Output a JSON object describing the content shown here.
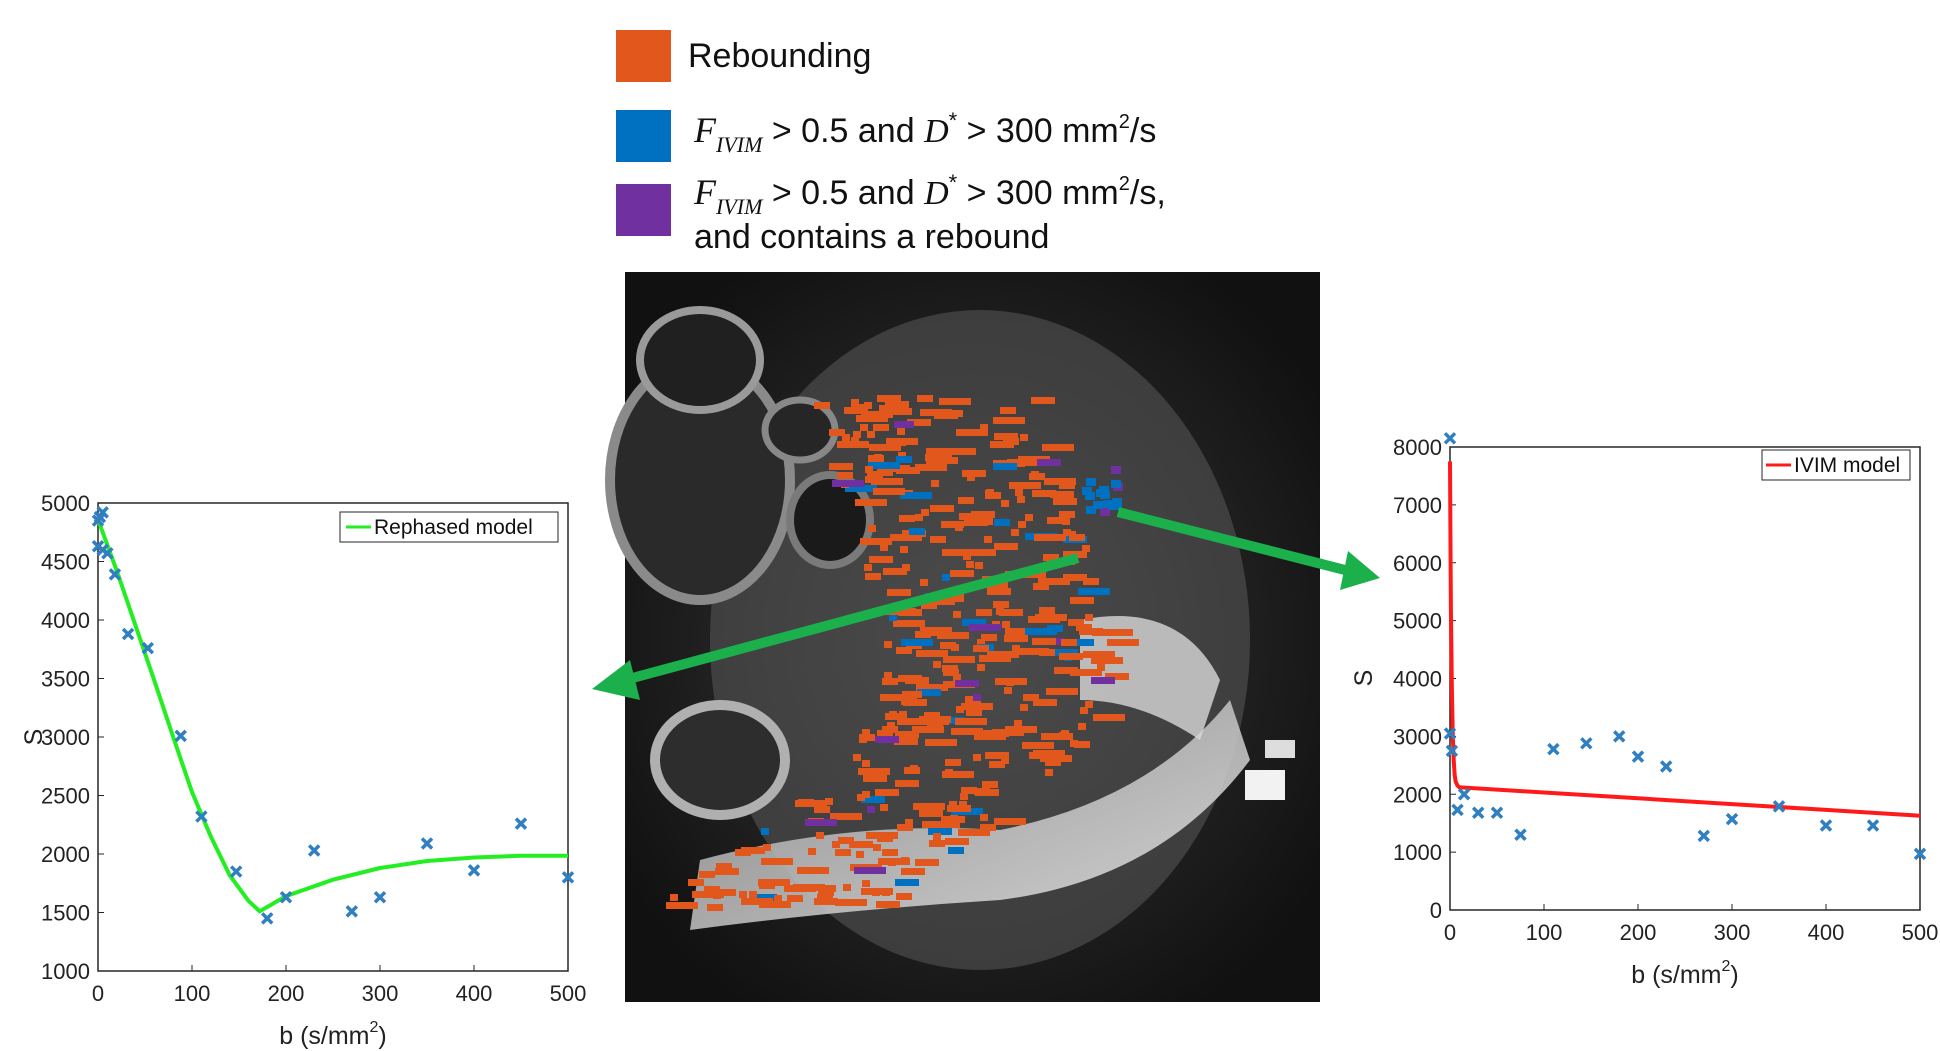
{
  "colors": {
    "rebounding": "#e2581c",
    "ivim_high": "#0070c0",
    "both": "#7030a0",
    "arrow": "#1cb04c",
    "rephased_line": "#22ee22",
    "ivim_line": "#ff1a1a",
    "markers": "#2f7fc1"
  },
  "legend": {
    "rebounding": "Rebounding",
    "f_symbol": "F",
    "f_subscript": "IVIM",
    "d_symbol": "D",
    "d_superscript": "*",
    "cond_part1": " > 0.5 and ",
    "cond_part2_a": " > 300 mm",
    "cond_part2_b": "2",
    "cond_part2_c": "/s",
    "cond_part2_c_comma": "/s,",
    "line2_text": "and contains a rebound"
  },
  "chart_data": [
    {
      "type": "line",
      "title": "",
      "legend": "Rephased model",
      "xlabel": "b (s/mm",
      "xlabel_sup": "2",
      "xlabel_end": ")",
      "ylabel": "S",
      "xlim": [
        0,
        500
      ],
      "ylim": [
        1000,
        5000
      ],
      "xticks": [
        0,
        100,
        200,
        300,
        400,
        500
      ],
      "yticks": [
        1000,
        1500,
        2000,
        2500,
        3000,
        3500,
        4000,
        4500,
        5000
      ],
      "scatter": {
        "x": [
          0,
          2,
          5,
          0,
          5,
          10,
          18,
          32,
          53,
          88,
          110,
          147,
          180,
          200,
          230,
          270,
          300,
          350,
          400,
          450,
          500
        ],
        "y": [
          4850,
          4880,
          4920,
          4630,
          4600,
          4570,
          4390,
          3880,
          3760,
          3010,
          2320,
          1850,
          1450,
          1630,
          2030,
          1510,
          1630,
          2090,
          1860,
          2260,
          1800
        ]
      },
      "model": {
        "x": [
          0,
          20,
          40,
          60,
          80,
          100,
          120,
          140,
          160,
          172,
          200,
          250,
          300,
          350,
          400,
          450,
          500
        ],
        "y": [
          4860,
          4420,
          3950,
          3480,
          3000,
          2530,
          2150,
          1820,
          1600,
          1510,
          1640,
          1780,
          1880,
          1940,
          1970,
          1985,
          1985
        ]
      }
    },
    {
      "type": "line",
      "title": "",
      "legend": "IVIM model",
      "xlabel": "b (s/mm",
      "xlabel_sup": "2",
      "xlabel_end": ")",
      "ylabel": "S",
      "xlim": [
        0,
        500
      ],
      "ylim": [
        0,
        8000
      ],
      "xticks": [
        0,
        100,
        200,
        300,
        400,
        500
      ],
      "yticks": [
        0,
        1000,
        2000,
        3000,
        4000,
        5000,
        6000,
        7000,
        8000
      ],
      "scatter": {
        "x": [
          0,
          0,
          2,
          8,
          15,
          30,
          50,
          75,
          110,
          145,
          180,
          200,
          230,
          270,
          300,
          350,
          400,
          450,
          500
        ],
        "y": [
          8150,
          3050,
          2750,
          1730,
          2000,
          1680,
          1680,
          1300,
          2780,
          2880,
          3000,
          2650,
          2480,
          1280,
          1570,
          1790,
          1460,
          1460,
          970
        ]
      },
      "model": {
        "x": [
          0,
          0.5,
          1,
          2,
          3,
          4,
          5,
          6,
          8,
          10,
          15,
          20,
          50,
          100,
          200,
          300,
          400,
          500
        ],
        "y": [
          7750,
          6300,
          5200,
          3800,
          3000,
          2560,
          2330,
          2220,
          2150,
          2120,
          2115,
          2110,
          2080,
          2030,
          1930,
          1830,
          1730,
          1630
        ]
      }
    }
  ]
}
